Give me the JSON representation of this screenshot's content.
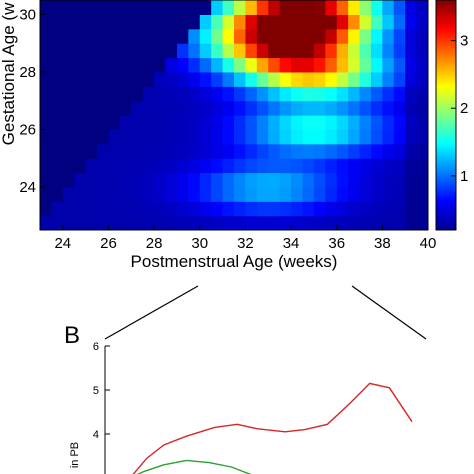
{
  "panel_b": {
    "label": "B"
  },
  "chart_data": [
    {
      "type": "heatmap",
      "xlabel": "Postmenstrual Age (weeks)",
      "ylabel": "Gestational Age (w",
      "x_ticks": [
        "24",
        "26",
        "28",
        "30",
        "32",
        "34",
        "36",
        "38",
        "40"
      ],
      "y_ticks": [
        "24",
        "26",
        "28",
        "30"
      ],
      "xlim": [
        23,
        40
      ],
      "ylim": [
        22.5,
        30.5
      ],
      "colorbar": {
        "ticks": [
          "1",
          "2",
          "3"
        ],
        "range": [
          0.2,
          3.6
        ],
        "colormap": "jet"
      },
      "hotspots": [
        {
          "x": 34.5,
          "y": 30,
          "value": 3.6
        },
        {
          "x": 33.5,
          "y": 29,
          "value": 2.5
        },
        {
          "x": 35,
          "y": 28,
          "value": 2.2
        },
        {
          "x": 35,
          "y": 26,
          "value": 1.4
        },
        {
          "x": 33,
          "y": 24,
          "value": 1.1
        }
      ],
      "background_value": 0.2
    },
    {
      "type": "line",
      "ylabel": "in PB",
      "y_ticks": [
        "4",
        "5",
        "6"
      ],
      "ylim": [
        3,
        6
      ],
      "series": [
        {
          "color": "#d62728",
          "x": [
            0,
            0.06,
            0.12,
            0.2,
            0.3,
            0.38,
            0.45,
            0.55,
            0.62,
            0.7,
            0.78,
            0.85,
            0.92,
            1.0
          ],
          "values": [
            3.0,
            3.45,
            3.75,
            3.95,
            4.15,
            4.22,
            4.12,
            4.05,
            4.1,
            4.22,
            4.7,
            5.15,
            5.05,
            4.28
          ]
        },
        {
          "color": "#2ca02c",
          "x": [
            0,
            0.05,
            0.12,
            0.2,
            0.28,
            0.36,
            0.44
          ],
          "values": [
            3.0,
            3.15,
            3.3,
            3.4,
            3.35,
            3.25,
            3.05
          ]
        }
      ]
    }
  ]
}
